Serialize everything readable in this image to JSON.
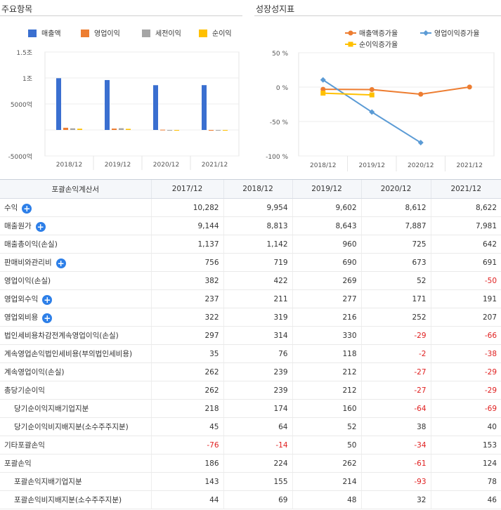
{
  "left_panel": {
    "title": "주요항목"
  },
  "right_panel": {
    "title": "성장성지표"
  },
  "chart_data": [
    {
      "type": "bar",
      "title": "주요항목",
      "categories": [
        "2018/12",
        "2019/12",
        "2020/12",
        "2021/12"
      ],
      "series": [
        {
          "name": "매출액",
          "color": "#3a6fd0",
          "values": [
            9954,
            9602,
            8612,
            8622
          ]
        },
        {
          "name": "영업이익",
          "color": "#ed7d31",
          "values": [
            422,
            269,
            52,
            -50
          ]
        },
        {
          "name": "세전이익",
          "color": "#a5a5a5",
          "values": [
            314,
            330,
            -29,
            -66
          ]
        },
        {
          "name": "순이익",
          "color": "#ffc000",
          "values": [
            239,
            212,
            -27,
            -29
          ]
        }
      ],
      "yticks": [
        {
          "value": 15000,
          "label": "1.5조"
        },
        {
          "value": 10000,
          "label": "1조"
        },
        {
          "value": 5000,
          "label": "5000억"
        },
        {
          "value": 0,
          "label": ""
        },
        {
          "value": -5000,
          "label": "-5000억"
        }
      ],
      "ylim": [
        -5000,
        15000
      ],
      "legend": "top"
    },
    {
      "type": "line",
      "title": "성장성지표",
      "categories": [
        "2018/12",
        "2019/12",
        "2020/12",
        "2021/12"
      ],
      "series": [
        {
          "name": "매출액증가율",
          "color": "#ed7d31",
          "marker": "circle",
          "values": [
            -3.19,
            -3.54,
            -10.31,
            0.12
          ]
        },
        {
          "name": "영업이익증가율",
          "color": "#5b9bd5",
          "marker": "diamond",
          "values": [
            10.47,
            -36.26,
            -80.67,
            null
          ]
        },
        {
          "name": "순이익증가율",
          "color": "#ffc000",
          "marker": "square",
          "values": [
            -8.78,
            -11.3,
            null,
            null
          ]
        }
      ],
      "yticks": [
        {
          "value": 50,
          "label": "50 %"
        },
        {
          "value": 0,
          "label": "0 %"
        },
        {
          "value": -50,
          "label": "-50 %"
        },
        {
          "value": -100,
          "label": "-100 %"
        }
      ],
      "ylim": [
        -100,
        50
      ],
      "legend": "top"
    }
  ],
  "table": {
    "headers": [
      "포괄손익계산서",
      "2017/12",
      "2018/12",
      "2019/12",
      "2020/12",
      "2021/12"
    ],
    "rows": [
      {
        "label": "수익",
        "expand": true,
        "sub": false,
        "values": [
          "10,282",
          "9,954",
          "9,602",
          "8,612",
          "8,622"
        ]
      },
      {
        "label": "매출원가",
        "expand": true,
        "sub": false,
        "values": [
          "9,144",
          "8,813",
          "8,643",
          "7,887",
          "7,981"
        ]
      },
      {
        "label": "매출총이익(손실)",
        "expand": false,
        "sub": false,
        "values": [
          "1,137",
          "1,142",
          "960",
          "725",
          "642"
        ]
      },
      {
        "label": "판매비와관리비",
        "expand": true,
        "sub": false,
        "values": [
          "756",
          "719",
          "690",
          "673",
          "691"
        ]
      },
      {
        "label": "영업이익(손실)",
        "expand": false,
        "sub": false,
        "values": [
          "382",
          "422",
          "269",
          "52",
          "-50"
        ]
      },
      {
        "label": "영업외수익",
        "expand": true,
        "sub": false,
        "values": [
          "237",
          "211",
          "277",
          "171",
          "191"
        ]
      },
      {
        "label": "영업외비용",
        "expand": true,
        "sub": false,
        "values": [
          "322",
          "319",
          "216",
          "252",
          "207"
        ]
      },
      {
        "label": "법인세비용차감전계속영업이익(손실)",
        "expand": false,
        "sub": false,
        "values": [
          "297",
          "314",
          "330",
          "-29",
          "-66"
        ]
      },
      {
        "label": "계속영업손익법인세비용(부의법인세비용)",
        "expand": false,
        "sub": false,
        "values": [
          "35",
          "76",
          "118",
          "-2",
          "-38"
        ]
      },
      {
        "label": "계속영업이익(손실)",
        "expand": false,
        "sub": false,
        "values": [
          "262",
          "239",
          "212",
          "-27",
          "-29"
        ]
      },
      {
        "label": "총당기순이익",
        "expand": false,
        "sub": false,
        "values": [
          "262",
          "239",
          "212",
          "-27",
          "-29"
        ]
      },
      {
        "label": "당기순이익지배기업지분",
        "expand": false,
        "sub": true,
        "values": [
          "218",
          "174",
          "160",
          "-64",
          "-69"
        ]
      },
      {
        "label": "당기순이익비지배지분(소수주주지분)",
        "expand": false,
        "sub": true,
        "values": [
          "45",
          "64",
          "52",
          "38",
          "40"
        ]
      },
      {
        "label": "기타포괄손익",
        "expand": false,
        "sub": false,
        "values": [
          "-76",
          "-14",
          "50",
          "-34",
          "153"
        ]
      },
      {
        "label": "포괄손익",
        "expand": false,
        "sub": false,
        "values": [
          "186",
          "224",
          "262",
          "-61",
          "124"
        ]
      },
      {
        "label": "포괄손익지배기업지분",
        "expand": false,
        "sub": true,
        "values": [
          "143",
          "155",
          "214",
          "-93",
          "78"
        ]
      },
      {
        "label": "포괄손익비지배지분(소수주주지분)",
        "expand": false,
        "sub": true,
        "values": [
          "44",
          "69",
          "48",
          "32",
          "46"
        ]
      }
    ]
  }
}
